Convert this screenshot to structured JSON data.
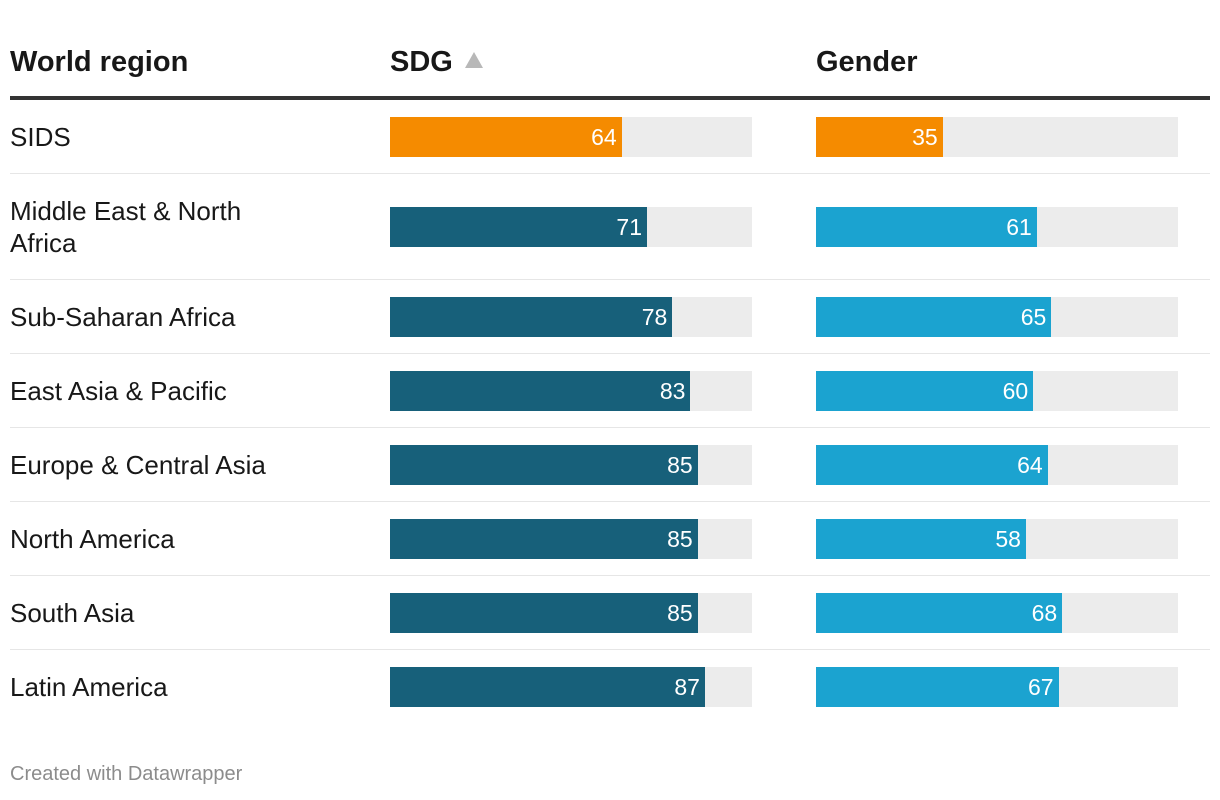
{
  "header": {
    "col_region": "World region",
    "col_sdg": "SDG",
    "col_gender": "Gender"
  },
  "colors": {
    "highlight": "#f58b00",
    "sdg": "#17607a",
    "gender": "#1ba3d0",
    "track": "#ececec"
  },
  "chart_data": {
    "type": "table",
    "title": "",
    "columns": [
      "World region",
      "SDG",
      "Gender"
    ],
    "sorted_by": "SDG",
    "sort_direction": "ascending",
    "scale_max": 100,
    "highlight_row": "SIDS",
    "rows": [
      {
        "region": "SIDS",
        "sdg": 64,
        "gender": 35
      },
      {
        "region": "Middle East & North Africa",
        "sdg": 71,
        "gender": 61
      },
      {
        "region": "Sub-Saharan Africa",
        "sdg": 78,
        "gender": 65
      },
      {
        "region": "East Asia & Pacific",
        "sdg": 83,
        "gender": 60
      },
      {
        "region": "Europe & Central Asia",
        "sdg": 85,
        "gender": 64
      },
      {
        "region": "North America",
        "sdg": 85,
        "gender": 58
      },
      {
        "region": "South Asia",
        "sdg": 85,
        "gender": 68
      },
      {
        "region": "Latin America",
        "sdg": 87,
        "gender": 67
      }
    ]
  },
  "footer": {
    "credit": "Created with Datawrapper"
  }
}
